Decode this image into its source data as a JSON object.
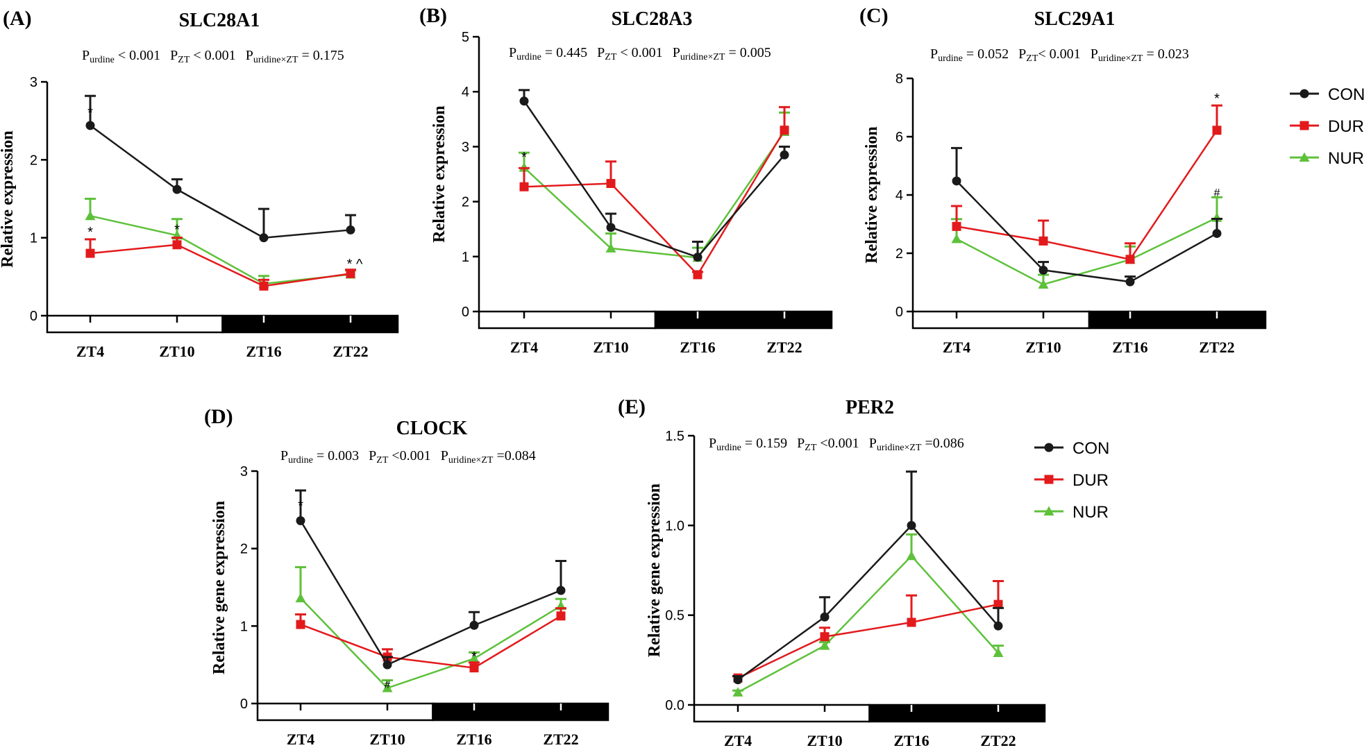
{
  "figure": {
    "x_categories": [
      "ZT4",
      "ZT10",
      "ZT16",
      "ZT22"
    ],
    "series_colors": {
      "CON": "#1a1a1a",
      "DUR": "#e31a1c",
      "NUR": "#5ec13b"
    },
    "legend_top": [
      "CON",
      "DUR",
      "NUR"
    ],
    "legend_bottom": [
      "CON",
      "DUR",
      "NUR"
    ]
  },
  "chart_data": [
    {
      "type": "line",
      "panel": "(A)",
      "title": "SLC28A1",
      "stats": [
        {
          "label": "P",
          "sub": "urdine",
          "rel": " < 0.001"
        },
        {
          "label": "P",
          "sub": "ZT",
          "rel": " < 0.001"
        },
        {
          "label": "P",
          "sub": "uridine×ZT",
          "rel": " = 0.175"
        }
      ],
      "ylabel": "Relative  expression",
      "ylim": [
        0,
        3
      ],
      "yticks": [
        0,
        1,
        2,
        3
      ],
      "ytick_labels": [
        "0",
        "1",
        "2",
        "3"
      ],
      "categories": [
        "ZT4",
        "ZT10",
        "ZT16",
        "ZT22"
      ],
      "series": [
        {
          "name": "CON",
          "values": [
            2.44,
            1.62,
            1.0,
            1.1
          ],
          "errors": [
            0.38,
            0.13,
            0.37,
            0.19
          ]
        },
        {
          "name": "DUR",
          "values": [
            0.8,
            0.91,
            0.38,
            0.54
          ],
          "errors": [
            0.18,
            0.09,
            0.08,
            0.05
          ]
        },
        {
          "name": "NUR",
          "values": [
            1.28,
            1.03,
            0.41,
            0.53
          ],
          "errors": [
            0.22,
            0.21,
            0.1,
            0.05
          ]
        }
      ],
      "annotations": [
        {
          "text": "*",
          "category": "ZT4",
          "y": 2.6
        },
        {
          "text": "*",
          "category": "ZT4",
          "y": 1.07
        },
        {
          "text": "*",
          "category": "ZT10",
          "y": 1.1
        },
        {
          "text": "* ^",
          "category": "ZT22",
          "y": 0.66
        }
      ]
    },
    {
      "type": "line",
      "panel": "(B)",
      "title": "SLC28A3",
      "stats": [
        {
          "label": "P",
          "sub": "urdine",
          "rel": " = 0.445"
        },
        {
          "label": "P",
          "sub": "ZT",
          "rel": " < 0.001"
        },
        {
          "label": "P",
          "sub": "uridine×ZT",
          "rel": " = 0.005"
        }
      ],
      "ylabel": "Relative  expression",
      "ylim": [
        0,
        5
      ],
      "yticks": [
        0,
        1,
        2,
        3,
        4,
        5
      ],
      "ytick_labels": [
        "0",
        "1",
        "2",
        "3",
        "4",
        "5"
      ],
      "categories": [
        "ZT4",
        "ZT10",
        "ZT16",
        "ZT22"
      ],
      "series": [
        {
          "name": "CON",
          "values": [
            3.83,
            1.53,
            0.99,
            2.85
          ],
          "errors": [
            0.2,
            0.25,
            0.28,
            0.15
          ]
        },
        {
          "name": "DUR",
          "values": [
            2.27,
            2.33,
            0.67,
            3.3
          ],
          "errors": [
            0.34,
            0.4,
            0.05,
            0.42
          ]
        },
        {
          "name": "NUR",
          "values": [
            2.62,
            1.15,
            0.98,
            3.27
          ],
          "errors": [
            0.27,
            0.27,
            0.18,
            0.35
          ]
        }
      ],
      "annotations": [
        {
          "text": "*",
          "category": "ZT4",
          "y": 2.8
        }
      ]
    },
    {
      "type": "line",
      "panel": "(C)",
      "title": "SLC29A1",
      "stats": [
        {
          "label": "P",
          "sub": "urdine",
          "rel": " = 0.052"
        },
        {
          "label": "P",
          "sub": "ZT",
          "rel": "< 0.001"
        },
        {
          "label": "P",
          "sub": "uridine×ZT",
          "rel": " = 0.023"
        }
      ],
      "ylabel": "Relative  expression",
      "ylim": [
        0,
        8
      ],
      "yticks": [
        0,
        2,
        4,
        6,
        8
      ],
      "ytick_labels": [
        "0",
        "2",
        "4",
        "6",
        "8"
      ],
      "categories": [
        "ZT4",
        "ZT10",
        "ZT16",
        "ZT22"
      ],
      "series": [
        {
          "name": "CON",
          "values": [
            4.48,
            1.42,
            1.02,
            2.68
          ],
          "errors": [
            1.13,
            0.28,
            0.18,
            0.5
          ]
        },
        {
          "name": "DUR",
          "values": [
            2.92,
            2.42,
            1.79,
            6.22
          ],
          "errors": [
            0.7,
            0.7,
            0.55,
            0.85
          ]
        },
        {
          "name": "NUR",
          "values": [
            2.49,
            0.93,
            1.78,
            3.22
          ],
          "errors": [
            0.68,
            0.33,
            0.45,
            0.7
          ]
        }
      ],
      "annotations": [
        {
          "text": "*",
          "category": "ZT22",
          "y": 7.3
        },
        {
          "text": "#",
          "category": "ZT22",
          "y": 4.1
        }
      ]
    },
    {
      "type": "line",
      "panel": "(D)",
      "title": "CLOCK",
      "stats": [
        {
          "label": "P",
          "sub": "urdine",
          "rel": " = 0.003"
        },
        {
          "label": "P",
          "sub": "ZT",
          "rel": " <0.001"
        },
        {
          "label": "P",
          "sub": "uridine×ZT",
          "rel": " =0.084"
        }
      ],
      "ylabel": "Relative gene expression",
      "ylim": [
        0,
        3
      ],
      "yticks": [
        0,
        1,
        2,
        3
      ],
      "ytick_labels": [
        "0",
        "1",
        "2",
        "3"
      ],
      "categories": [
        "ZT4",
        "ZT10",
        "ZT16",
        "ZT22"
      ],
      "series": [
        {
          "name": "CON",
          "values": [
            2.36,
            0.5,
            1.01,
            1.46
          ],
          "errors": [
            0.39,
            0.1,
            0.17,
            0.38
          ]
        },
        {
          "name": "DUR",
          "values": [
            1.02,
            0.6,
            0.46,
            1.13
          ],
          "errors": [
            0.13,
            0.1,
            0.07,
            0.1
          ]
        },
        {
          "name": "NUR",
          "values": [
            1.36,
            0.2,
            0.58,
            1.26
          ],
          "errors": [
            0.4,
            0.1,
            0.08,
            0.09
          ]
        }
      ],
      "annotations": [
        {
          "text": "*",
          "category": "ZT4",
          "y": 2.55
        },
        {
          "text": "#",
          "category": "ZT10",
          "y": 0.25
        },
        {
          "text": "*",
          "category": "ZT16",
          "y": 0.6
        }
      ]
    },
    {
      "type": "line",
      "panel": "(E)",
      "title": "PER2",
      "stats": [
        {
          "label": "P",
          "sub": "urdine",
          "rel": " = 0.159"
        },
        {
          "label": "P",
          "sub": "ZT",
          "rel": " <0.001"
        },
        {
          "label": "P",
          "sub": "uridine×ZT",
          "rel": " =0.086"
        }
      ],
      "ylabel": "Relative  gene expression",
      "ylim": [
        0,
        1.5
      ],
      "yticks": [
        0,
        0.5,
        1.0,
        1.5
      ],
      "ytick_labels": [
        "0.0",
        "0.5",
        "1.0",
        "1.5"
      ],
      "categories": [
        "ZT4",
        "ZT10",
        "ZT16",
        "ZT22"
      ],
      "series": [
        {
          "name": "CON",
          "values": [
            0.14,
            0.49,
            1.0,
            0.44
          ],
          "errors": [
            0.02,
            0.11,
            0.3,
            0.1
          ]
        },
        {
          "name": "DUR",
          "values": [
            0.15,
            0.38,
            0.46,
            0.56
          ],
          "errors": [
            0.01,
            0.05,
            0.15,
            0.13
          ]
        },
        {
          "name": "NUR",
          "values": [
            0.07,
            0.33,
            0.83,
            0.29
          ],
          "errors": [
            0.01,
            0.02,
            0.12,
            0.04
          ]
        }
      ],
      "annotations": []
    }
  ]
}
